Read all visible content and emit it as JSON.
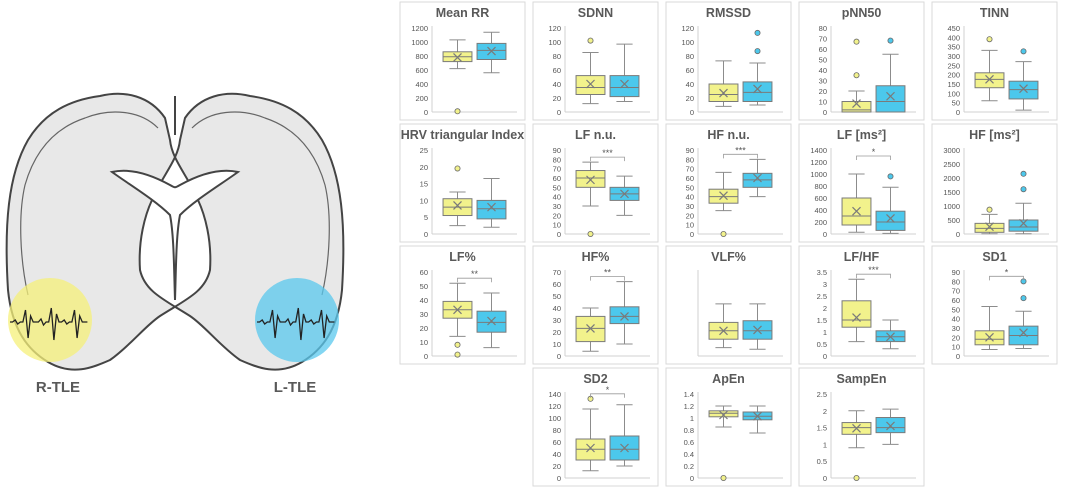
{
  "figure": {
    "groups": [
      {
        "name": "R-TLE",
        "color": "#f2f28c"
      },
      {
        "name": "L-TLE",
        "color": "#4cc8ec"
      }
    ],
    "brain": {
      "left_label": "R-TLE",
      "right_label": "L-TLE",
      "left_circle_color": "#f5f07a",
      "right_circle_color": "#5ac8ee"
    }
  },
  "chart_data": [
    {
      "type": "box",
      "title": "Mean RR",
      "ylim": [
        0,
        1200
      ],
      "yticks": [
        0,
        200,
        400,
        600,
        800,
        1000,
        1200
      ],
      "boxes": [
        {
          "group": "R-TLE",
          "q1": 720,
          "median": 790,
          "q3": 860,
          "whisker_low": 620,
          "whisker_high": 1030,
          "mean": 780,
          "outliers": [
            10
          ]
        },
        {
          "group": "L-TLE",
          "q1": 750,
          "median": 880,
          "q3": 980,
          "whisker_low": 560,
          "whisker_high": 1140,
          "mean": 870,
          "outliers": []
        }
      ]
    },
    {
      "type": "box",
      "title": "SDNN",
      "ylim": [
        0,
        120
      ],
      "yticks": [
        0,
        20,
        40,
        60,
        80,
        100,
        120
      ],
      "boxes": [
        {
          "group": "R-TLE",
          "q1": 25,
          "median": 35,
          "q3": 52,
          "whisker_low": 12,
          "whisker_high": 85,
          "mean": 40,
          "outliers": [
            102
          ]
        },
        {
          "group": "L-TLE",
          "q1": 22,
          "median": 35,
          "q3": 52,
          "whisker_low": 15,
          "whisker_high": 97,
          "mean": 40,
          "outliers": []
        }
      ]
    },
    {
      "type": "box",
      "title": "RMSSD",
      "ylim": [
        0,
        120
      ],
      "yticks": [
        0,
        20,
        40,
        60,
        80,
        100,
        120
      ],
      "boxes": [
        {
          "group": "R-TLE",
          "q1": 15,
          "median": 25,
          "q3": 40,
          "whisker_low": 8,
          "whisker_high": 73,
          "mean": 27,
          "outliers": []
        },
        {
          "group": "L-TLE",
          "q1": 15,
          "median": 28,
          "q3": 43,
          "whisker_low": 10,
          "whisker_high": 70,
          "mean": 33,
          "outliers": [
            87,
            113
          ]
        }
      ]
    },
    {
      "type": "box",
      "title": "pNN50",
      "ylim": [
        0,
        80
      ],
      "yticks": [
        0,
        10,
        20,
        30,
        40,
        50,
        60,
        70,
        80
      ],
      "boxes": [
        {
          "group": "R-TLE",
          "q1": 0,
          "median": 2,
          "q3": 10,
          "whisker_low": 0,
          "whisker_high": 20,
          "mean": 8,
          "outliers": [
            35,
            67
          ]
        },
        {
          "group": "L-TLE",
          "q1": 0,
          "median": 10,
          "q3": 25,
          "whisker_low": 0,
          "whisker_high": 55,
          "mean": 15,
          "outliers": [
            68
          ]
        }
      ]
    },
    {
      "type": "box",
      "title": "TINN",
      "ylim": [
        0,
        450
      ],
      "yticks": [
        0,
        50,
        100,
        150,
        200,
        250,
        300,
        350,
        400,
        450
      ],
      "boxes": [
        {
          "group": "R-TLE",
          "q1": 130,
          "median": 175,
          "q3": 210,
          "whisker_low": 60,
          "whisker_high": 330,
          "mean": 175,
          "outliers": [
            390
          ]
        },
        {
          "group": "L-TLE",
          "q1": 70,
          "median": 120,
          "q3": 165,
          "whisker_low": 10,
          "whisker_high": 270,
          "mean": 125,
          "outliers": [
            325
          ]
        }
      ]
    },
    {
      "type": "box",
      "title": "HRV triangular Index",
      "ylim": [
        0,
        25
      ],
      "yticks": [
        0,
        5,
        10,
        15,
        20,
        25
      ],
      "boxes": [
        {
          "group": "R-TLE",
          "q1": 5.5,
          "median": 8,
          "q3": 10.5,
          "whisker_low": 2.5,
          "whisker_high": 12.5,
          "mean": 8.5,
          "outliers": [
            19.5
          ]
        },
        {
          "group": "L-TLE",
          "q1": 4.5,
          "median": 7.5,
          "q3": 10,
          "whisker_low": 2,
          "whisker_high": 16.5,
          "mean": 8,
          "outliers": []
        }
      ]
    },
    {
      "type": "box",
      "title": "LF n.u.",
      "ylim": [
        0,
        90
      ],
      "yticks": [
        0,
        10,
        20,
        30,
        40,
        50,
        60,
        70,
        80,
        90
      ],
      "significance": "***",
      "boxes": [
        {
          "group": "R-TLE",
          "q1": 50,
          "median": 60,
          "q3": 68,
          "whisker_low": 30,
          "whisker_high": 77,
          "mean": 58,
          "outliers": [
            0
          ]
        },
        {
          "group": "L-TLE",
          "q1": 36,
          "median": 43,
          "q3": 50,
          "whisker_low": 20,
          "whisker_high": 62,
          "mean": 43,
          "outliers": []
        }
      ]
    },
    {
      "type": "box",
      "title": "HF n.u.",
      "ylim": [
        0,
        90
      ],
      "yticks": [
        0,
        10,
        20,
        30,
        40,
        50,
        60,
        70,
        80,
        90
      ],
      "significance": "***",
      "boxes": [
        {
          "group": "R-TLE",
          "q1": 33,
          "median": 40,
          "q3": 48,
          "whisker_low": 25,
          "whisker_high": 66,
          "mean": 41,
          "outliers": [
            0
          ]
        },
        {
          "group": "L-TLE",
          "q1": 50,
          "median": 58,
          "q3": 65,
          "whisker_low": 40,
          "whisker_high": 80,
          "mean": 60,
          "outliers": []
        }
      ]
    },
    {
      "type": "box",
      "title": "LF [ms²]",
      "ylim": [
        0,
        1400
      ],
      "yticks": [
        0,
        200,
        400,
        600,
        800,
        1000,
        1200,
        1400
      ],
      "significance": "*",
      "boxes": [
        {
          "group": "R-TLE",
          "q1": 150,
          "median": 300,
          "q3": 600,
          "whisker_low": 30,
          "whisker_high": 1000,
          "mean": 380,
          "outliers": []
        },
        {
          "group": "L-TLE",
          "q1": 60,
          "median": 200,
          "q3": 380,
          "whisker_low": 10,
          "whisker_high": 780,
          "mean": 260,
          "outliers": [
            960
          ]
        }
      ]
    },
    {
      "type": "box",
      "title": "HF [ms²]",
      "ylim": [
        0,
        3000
      ],
      "yticks": [
        0,
        500,
        1000,
        1500,
        2000,
        2500,
        3000
      ],
      "boxes": [
        {
          "group": "R-TLE",
          "q1": 60,
          "median": 200,
          "q3": 380,
          "whisker_low": 10,
          "whisker_high": 700,
          "mean": 260,
          "outliers": [
            870
          ]
        },
        {
          "group": "L-TLE",
          "q1": 100,
          "median": 250,
          "q3": 500,
          "whisker_low": 10,
          "whisker_high": 1100,
          "mean": 380,
          "outliers": [
            1600,
            2150
          ]
        }
      ]
    },
    {
      "type": "box",
      "title": "LF%",
      "ylim": [
        0,
        60
      ],
      "yticks": [
        0,
        10,
        20,
        30,
        40,
        50,
        60
      ],
      "significance": "**",
      "boxes": [
        {
          "group": "R-TLE",
          "q1": 27,
          "median": 33,
          "q3": 39,
          "whisker_low": 14,
          "whisker_high": 52,
          "mean": 33,
          "outliers": [
            8,
            1
          ]
        },
        {
          "group": "L-TLE",
          "q1": 17,
          "median": 24,
          "q3": 32,
          "whisker_low": 6,
          "whisker_high": 45,
          "mean": 25,
          "outliers": []
        }
      ]
    },
    {
      "type": "box",
      "title": "HF%",
      "ylim": [
        0,
        70
      ],
      "yticks": [
        0,
        10,
        20,
        30,
        40,
        50,
        60,
        70
      ],
      "significance": "**",
      "boxes": [
        {
          "group": "R-TLE",
          "q1": 12,
          "median": 23,
          "q3": 33,
          "whisker_low": 4,
          "whisker_high": 40,
          "mean": 23,
          "outliers": []
        },
        {
          "group": "L-TLE",
          "q1": 27,
          "median": 33,
          "q3": 41,
          "whisker_low": 10,
          "whisker_high": 62,
          "mean": 33,
          "outliers": []
        }
      ]
    },
    {
      "type": "box",
      "title": "VLF%",
      "ylim": [
        0,
        100
      ],
      "yticks": [],
      "boxes": [
        {
          "group": "R-TLE",
          "q1": 20,
          "median": 30,
          "q3": 40,
          "whisker_low": 10,
          "whisker_high": 62,
          "mean": 30,
          "outliers": []
        },
        {
          "group": "L-TLE",
          "q1": 20,
          "median": 30,
          "q3": 42,
          "whisker_low": 8,
          "whisker_high": 62,
          "mean": 31,
          "outliers": []
        }
      ]
    },
    {
      "type": "box",
      "title": "LF/HF",
      "ylim": [
        0,
        3.5
      ],
      "yticks": [
        0,
        0.5,
        1,
        1.5,
        2,
        2.5,
        3,
        3.5
      ],
      "significance": "***",
      "boxes": [
        {
          "group": "R-TLE",
          "q1": 1.2,
          "median": 1.5,
          "q3": 2.3,
          "whisker_low": 0.6,
          "whisker_high": 3.2,
          "mean": 1.6,
          "outliers": []
        },
        {
          "group": "L-TLE",
          "q1": 0.6,
          "median": 0.8,
          "q3": 1.05,
          "whisker_low": 0.3,
          "whisker_high": 1.5,
          "mean": 0.8,
          "outliers": []
        }
      ]
    },
    {
      "type": "box",
      "title": "SD1",
      "ylim": [
        0,
        90
      ],
      "yticks": [
        0,
        10,
        20,
        30,
        40,
        50,
        60,
        70,
        80,
        90
      ],
      "significance": "*",
      "boxes": [
        {
          "group": "R-TLE",
          "q1": 12,
          "median": 18,
          "q3": 27,
          "whisker_low": 7,
          "whisker_high": 53,
          "mean": 20,
          "outliers": []
        },
        {
          "group": "L-TLE",
          "q1": 12,
          "median": 22,
          "q3": 32,
          "whisker_low": 8,
          "whisker_high": 48,
          "mean": 25,
          "outliers": [
            62,
            80
          ]
        }
      ]
    },
    {
      "type": "box",
      "title": "SD2",
      "ylim": [
        0,
        140
      ],
      "yticks": [
        0,
        20,
        40,
        60,
        80,
        100,
        120,
        140
      ],
      "significance": "*",
      "boxes": [
        {
          "group": "R-TLE",
          "q1": 30,
          "median": 48,
          "q3": 65,
          "whisker_low": 12,
          "whisker_high": 115,
          "mean": 50,
          "outliers": [
            132
          ]
        },
        {
          "group": "L-TLE",
          "q1": 30,
          "median": 48,
          "q3": 70,
          "whisker_low": 20,
          "whisker_high": 122,
          "mean": 50,
          "outliers": []
        }
      ]
    },
    {
      "type": "box",
      "title": "ApEn",
      "ylim": [
        0,
        1.4
      ],
      "yticks": [
        0,
        0.2,
        0.4,
        0.6,
        0.8,
        1,
        1.2,
        1.4
      ],
      "boxes": [
        {
          "group": "R-TLE",
          "q1": 1.02,
          "median": 1.08,
          "q3": 1.12,
          "whisker_low": 0.85,
          "whisker_high": 1.2,
          "mean": 1.05,
          "outliers": [
            0
          ]
        },
        {
          "group": "L-TLE",
          "q1": 0.97,
          "median": 1.03,
          "q3": 1.1,
          "whisker_low": 0.75,
          "whisker_high": 1.2,
          "mean": 1.03,
          "outliers": []
        }
      ]
    },
    {
      "type": "box",
      "title": "SampEn",
      "ylim": [
        0,
        2.5
      ],
      "yticks": [
        0,
        0.5,
        1,
        1.5,
        2,
        2.5
      ],
      "boxes": [
        {
          "group": "R-TLE",
          "q1": 1.3,
          "median": 1.5,
          "q3": 1.65,
          "whisker_low": 0.9,
          "whisker_high": 2.0,
          "mean": 1.48,
          "outliers": [
            0
          ]
        },
        {
          "group": "L-TLE",
          "q1": 1.35,
          "median": 1.5,
          "q3": 1.8,
          "whisker_low": 1.0,
          "whisker_high": 2.05,
          "mean": 1.55,
          "outliers": []
        }
      ]
    }
  ]
}
